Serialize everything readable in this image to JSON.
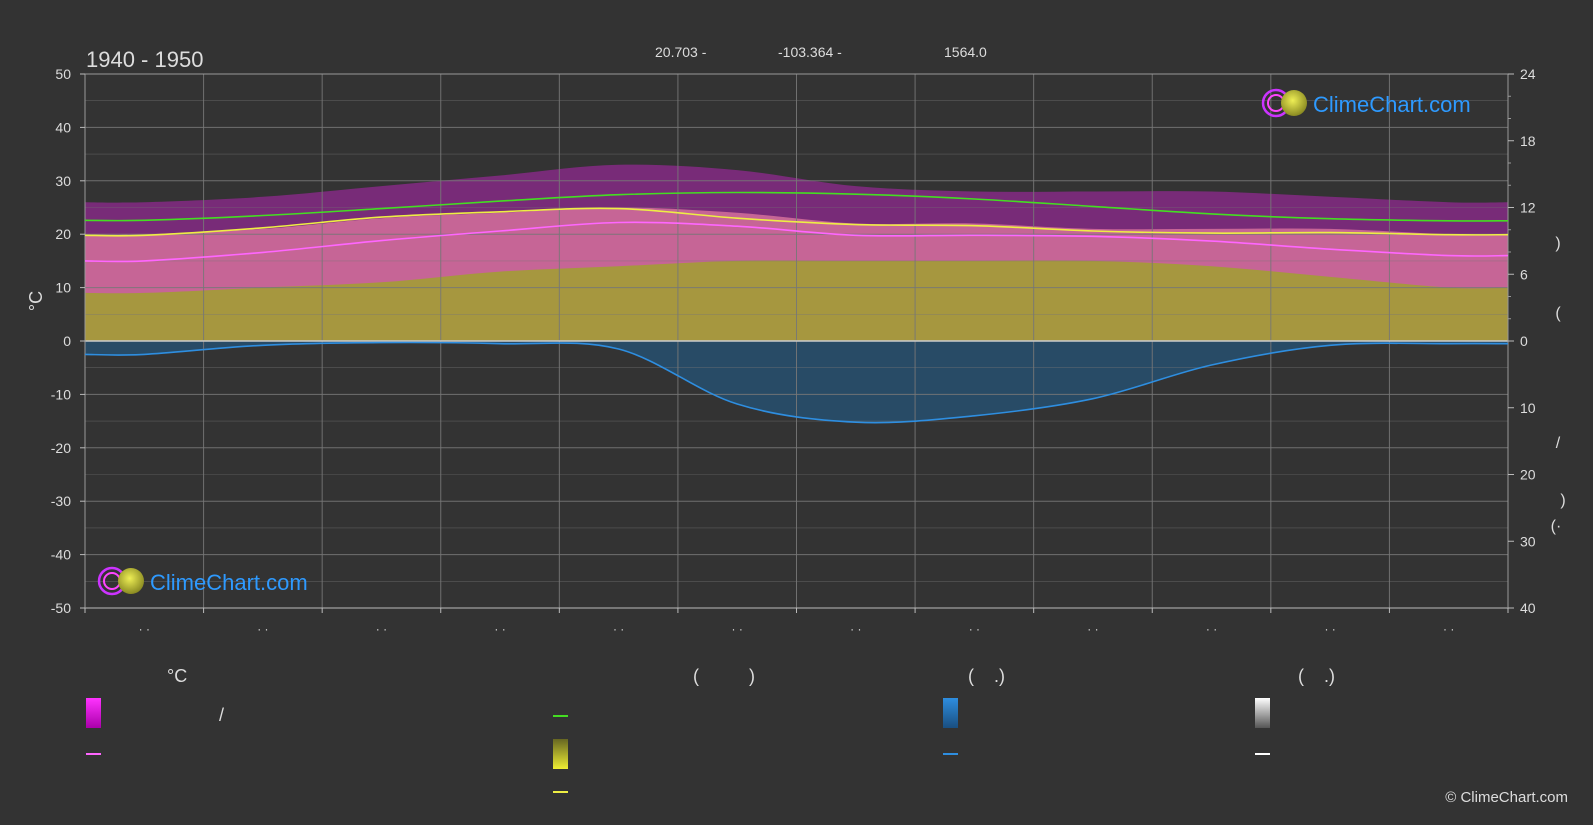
{
  "chart_data": {
    "type": "area",
    "title": "1940 - 1950",
    "subtitle_parts": [
      "20.703 -",
      "-103.364 -",
      "1564.0"
    ],
    "ylabel_left": "°C",
    "ylim_left": [
      -50,
      50
    ],
    "yticks_left": [
      "50",
      "40",
      "30",
      "20",
      "10",
      "0",
      "-10",
      "-20",
      "-30",
      "-40",
      "-50"
    ],
    "ylim_right_top": [
      0,
      24
    ],
    "yticks_right_top": [
      "24",
      "18",
      "12",
      "6",
      "0"
    ],
    "ylim_right_bottom": [
      0,
      40
    ],
    "yticks_right_bottom": [
      "0",
      "10",
      "20",
      "30",
      "40"
    ],
    "right_axis_glyphs": [
      ")",
      "(",
      "/",
      ")",
      "(·"
    ],
    "x_tick_labels": [
      "· ·",
      "· ·",
      "· ·",
      "· ·",
      "· ·",
      "· ·",
      "· ·",
      "· ·",
      "· ·",
      "· ·",
      "· ·",
      "· ·"
    ],
    "months": [
      1,
      2,
      3,
      4,
      5,
      6,
      7,
      8,
      9,
      10,
      11,
      12
    ],
    "series": [
      {
        "key": "daylight",
        "values": [
          22.6,
          23.5,
          24.8,
          26.2,
          27.4,
          27.8,
          27.5,
          26.6,
          25.2,
          23.8,
          22.9,
          22.5
        ]
      },
      {
        "key": "sunshine",
        "values": [
          19.8,
          21.2,
          23.2,
          24.2,
          24.8,
          23.0,
          21.8,
          21.6,
          20.6,
          20.2,
          20.3,
          19.9
        ]
      },
      {
        "key": "mean_max",
        "values": [
          15.0,
          16.6,
          18.8,
          20.6,
          22.2,
          21.5,
          19.8,
          19.8,
          19.6,
          18.7,
          17.2,
          16.0
        ]
      },
      {
        "key": "precipitation",
        "values": [
          -2.5,
          -0.8,
          -0.3,
          -0.5,
          -1.5,
          -11.8,
          -15.2,
          -14.0,
          -10.8,
          -4.5,
          -0.8,
          -0.5
        ]
      }
    ],
    "band_upper_magenta": [
      26,
      27,
      29,
      31,
      33,
      32,
      29,
      28,
      28,
      28,
      27,
      26
    ],
    "band_upper_pink": [
      20,
      21,
      23,
      24,
      25,
      24,
      22,
      22,
      21,
      21,
      21,
      20
    ],
    "band_upper_olive": [
      9,
      10,
      11,
      13,
      14,
      15,
      15,
      15,
      15,
      14,
      12,
      10
    ],
    "grid": true,
    "colors": {
      "background": "#333333",
      "daylight": "#44dd22",
      "sunshine": "#eeee44",
      "mean_max": "#ff66ff",
      "precipitation": "#2e8ee0",
      "magenta_band": "#cc22cc",
      "pink_band": "#e07aa0",
      "olive_band": "#a0a030",
      "precip_band": "#1f5f8f",
      "grid": "#777777",
      "zero_line": "#cccccc",
      "brand_blue": "#2e9aff"
    }
  },
  "watermark": {
    "text": "ClimeChart.com"
  },
  "legend": {
    "col1": {
      "header": "°C",
      "row1": "/"
    },
    "col2": {
      "header": "(          )"
    },
    "col3": {
      "header": "(    .)"
    },
    "col4": {
      "header": "(    .)"
    }
  },
  "copyright": "© ClimeChart.com"
}
